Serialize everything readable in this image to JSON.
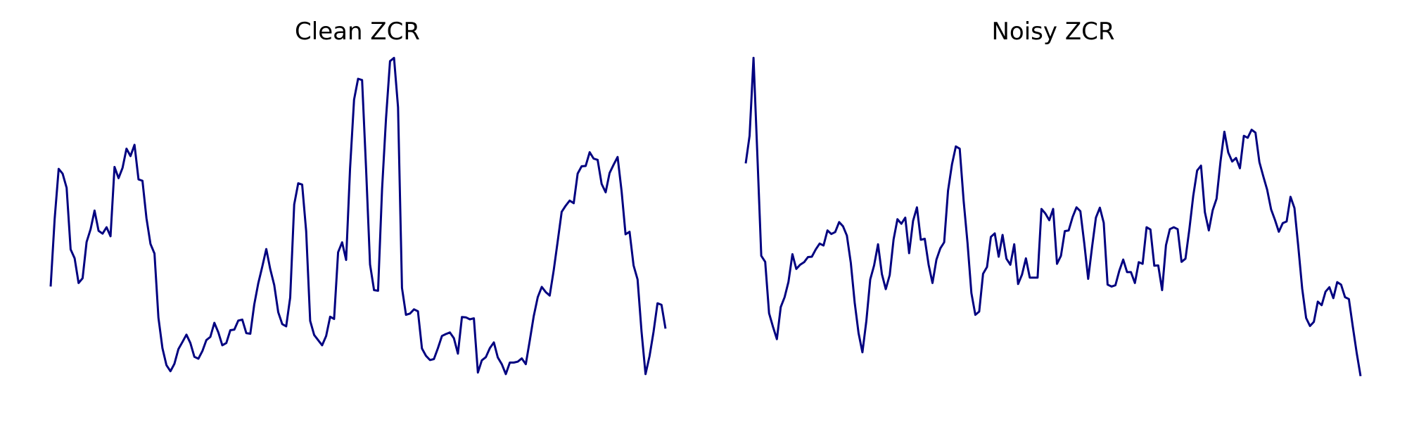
{
  "chart_data": [
    {
      "type": "line",
      "title": "Clean ZCR",
      "xlabel": "",
      "ylabel": "",
      "axes_visible": false,
      "grid": false,
      "legend": "none",
      "ylim": [
        0,
        100
      ],
      "color": "#000080",
      "y": [
        31.7,
        52.8,
        68.4,
        66.9,
        62.5,
        43.3,
        40.5,
        32.8,
        34.3,
        45.6,
        49.6,
        55.4,
        49.1,
        48.2,
        50.2,
        47.4,
        69.0,
        65.5,
        68.7,
        74.7,
        72.4,
        75.9,
        65.1,
        64.7,
        53.0,
        45.0,
        42.0,
        22.0,
        12.5,
        7.2,
        5.3,
        7.6,
        12.2,
        14.4,
        16.7,
        14.1,
        9.8,
        9.2,
        11.6,
        15.0,
        16.0,
        20.4,
        17.4,
        13.4,
        14.1,
        18.1,
        18.3,
        21.1,
        21.4,
        17.2,
        17.0,
        26.1,
        32.7,
        37.9,
        43.4,
        37.2,
        32.2,
        23.7,
        20.0,
        19.3,
        28.3,
        57.3,
        63.9,
        63.5,
        49.0,
        21.0,
        16.6,
        15.0,
        13.4,
        16.3,
        22.3,
        21.6,
        42.4,
        45.5,
        40.0,
        68.5,
        90.0,
        96.5,
        96.1,
        68.3,
        38.6,
        30.6,
        30.4,
        62.1,
        84.1,
        102.0,
        103.0,
        87.6,
        31.3,
        22.9,
        23.3,
        24.6,
        24.0,
        12.4,
        10.1,
        8.8,
        9.1,
        12.5,
        16.3,
        16.9,
        17.4,
        15.6,
        10.8,
        22.2,
        22.1,
        21.5,
        21.8,
        4.9,
        8.7,
        9.7,
        12.5,
        14.3,
        9.6,
        7.5,
        4.4,
        8.0,
        8.0,
        8.3,
        9.3,
        7.5,
        14.8,
        22.5,
        28.4,
        31.6,
        30.0,
        28.9,
        36.8,
        45.9,
        55.0,
        56.9,
        58.5,
        57.7,
        66.9,
        69.2,
        69.3,
        73.6,
        71.6,
        71.2,
        63.7,
        61.1,
        67.1,
        69.7,
        72.1,
        61.4,
        48.0,
        48.8,
        38.3,
        33.9,
        17.7,
        4.4,
        10.0,
        17.6,
        26.5,
        26.0,
        18.6
      ]
    },
    {
      "type": "line",
      "title": "Noisy ZCR",
      "xlabel": "",
      "ylabel": "",
      "axes_visible": false,
      "grid": false,
      "legend": "none",
      "ylim": [
        0,
        100
      ],
      "color": "#000080",
      "y": [
        70.1,
        78.7,
        103.0,
        72.5,
        41.3,
        39.4,
        23.4,
        19.2,
        15.3,
        25.3,
        28.4,
        33.2,
        41.8,
        37.2,
        38.5,
        39.3,
        40.9,
        41.0,
        43.3,
        45.1,
        44.5,
        49.2,
        48.1,
        48.7,
        51.8,
        50.5,
        47.6,
        39.1,
        26.7,
        17.2,
        11.2,
        21.0,
        33.9,
        38.3,
        44.9,
        35.6,
        30.9,
        35.3,
        46.4,
        52.7,
        51.3,
        53.2,
        42.1,
        52.2,
        56.4,
        46.3,
        46.6,
        38.5,
        32.8,
        40.1,
        43.6,
        45.5,
        61.6,
        69.8,
        75.4,
        74.7,
        58.4,
        45.3,
        29.7,
        22.9,
        23.9,
        35.7,
        37.8,
        47.2,
        48.3,
        41.0,
        47.8,
        40.4,
        38.5,
        44.9,
        32.5,
        35.4,
        40.5,
        34.5,
        34.5,
        34.5,
        55.9,
        54.5,
        52.4,
        55.9,
        38.8,
        41.3,
        49.0,
        49.2,
        53.4,
        56.4,
        55.2,
        45.1,
        34.1,
        44.0,
        53.2,
        56.3,
        51.6,
        32.3,
        31.7,
        32.1,
        36.6,
        40.1,
        36.2,
        36.2,
        32.8,
        39.3,
        38.8,
        50.2,
        49.5,
        38.2,
        38.3,
        30.6,
        44.6,
        49.6,
        50.2,
        49.6,
        39.4,
        40.4,
        49.5,
        59.9,
        67.9,
        69.4,
        54.9,
        49.2,
        55.5,
        59.1,
        70.7,
        80.0,
        73.5,
        70.7,
        71.8,
        68.6,
        78.7,
        78.1,
        80.6,
        79.7,
        70.5,
        66.1,
        61.9,
        55.8,
        52.5,
        48.8,
        51.5,
        52.0,
        59.7,
        56.2,
        44.1,
        31.1,
        21.9,
        19.4,
        20.7,
        27.0,
        25.9,
        30.1,
        31.5,
        28.1,
        33.1,
        32.3,
        28.4,
        27.8,
        19.3,
        11.0,
        3.8
      ]
    }
  ]
}
